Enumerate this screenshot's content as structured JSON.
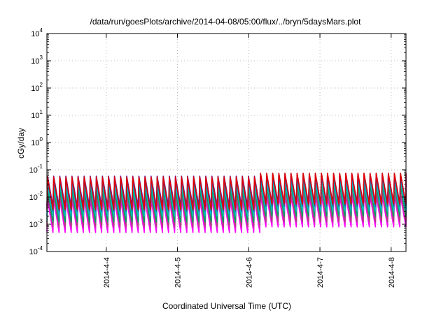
{
  "chart_data": {
    "type": "line",
    "title": "/data/run/goesPlots/archive/2014-04-08/05:00/flux/../bryn/5daysMars.plot",
    "xlabel": "Coordinated Universal Time (UTC)",
    "ylabel": "cGy/day",
    "y_scale": "log",
    "ylim": [
      0.0001,
      10000
    ],
    "xlim": [
      "2014-04-03 04:00",
      "2014-04-08 05:00"
    ],
    "grid": true,
    "legend": "none",
    "y_ticks": [
      {
        "base": "10",
        "exp": "-4"
      },
      {
        "base": "10",
        "exp": "-3"
      },
      {
        "base": "10",
        "exp": "-2"
      },
      {
        "base": "10",
        "exp": "-1"
      },
      {
        "base": "10",
        "exp": "0"
      },
      {
        "base": "10",
        "exp": "1"
      },
      {
        "base": "10",
        "exp": "2"
      },
      {
        "base": "10",
        "exp": "3"
      },
      {
        "base": "10",
        "exp": "4"
      }
    ],
    "x_ticks": [
      "2014-4-4",
      "2014-4-5",
      "2014-4-6",
      "2014-4-7",
      "2014-4-8"
    ],
    "pattern": {
      "description_of_values": "sawtooth: each cycle peaks then decays; period about 2 hours",
      "period_hours": 2.05,
      "x_start": "2014-04-03 04:00",
      "step_change_at": "2014-04-06 02:00"
    },
    "series": [
      {
        "color": "#e00000",
        "peak_before": 0.055,
        "trough_before": 0.0035,
        "peak_after": 0.075,
        "trough_after": 0.0055
      },
      {
        "color": "#2020ff",
        "peak_before": 0.058,
        "trough_before": 0.0045,
        "peak_after": 0.072,
        "trough_after": 0.006
      },
      {
        "color": "#1a6bb0",
        "peak_before": 0.045,
        "trough_before": 0.003,
        "peak_after": 0.06,
        "trough_after": 0.0045
      },
      {
        "color": "#00c0c0",
        "peak_before": 0.03,
        "trough_before": 0.002,
        "peak_after": 0.04,
        "trough_after": 0.003
      },
      {
        "color": "#00a060",
        "peak_before": 0.02,
        "trough_before": 0.0012,
        "peak_after": 0.028,
        "trough_after": 0.002
      },
      {
        "color": "#b04080",
        "peak_before": 0.012,
        "trough_before": 0.0008,
        "peak_after": 0.016,
        "trough_after": 0.0012
      },
      {
        "color": "#ff00ff",
        "peak_before": 0.008,
        "trough_before": 0.0005,
        "peak_after": 0.011,
        "trough_after": 0.0008
      }
    ]
  }
}
